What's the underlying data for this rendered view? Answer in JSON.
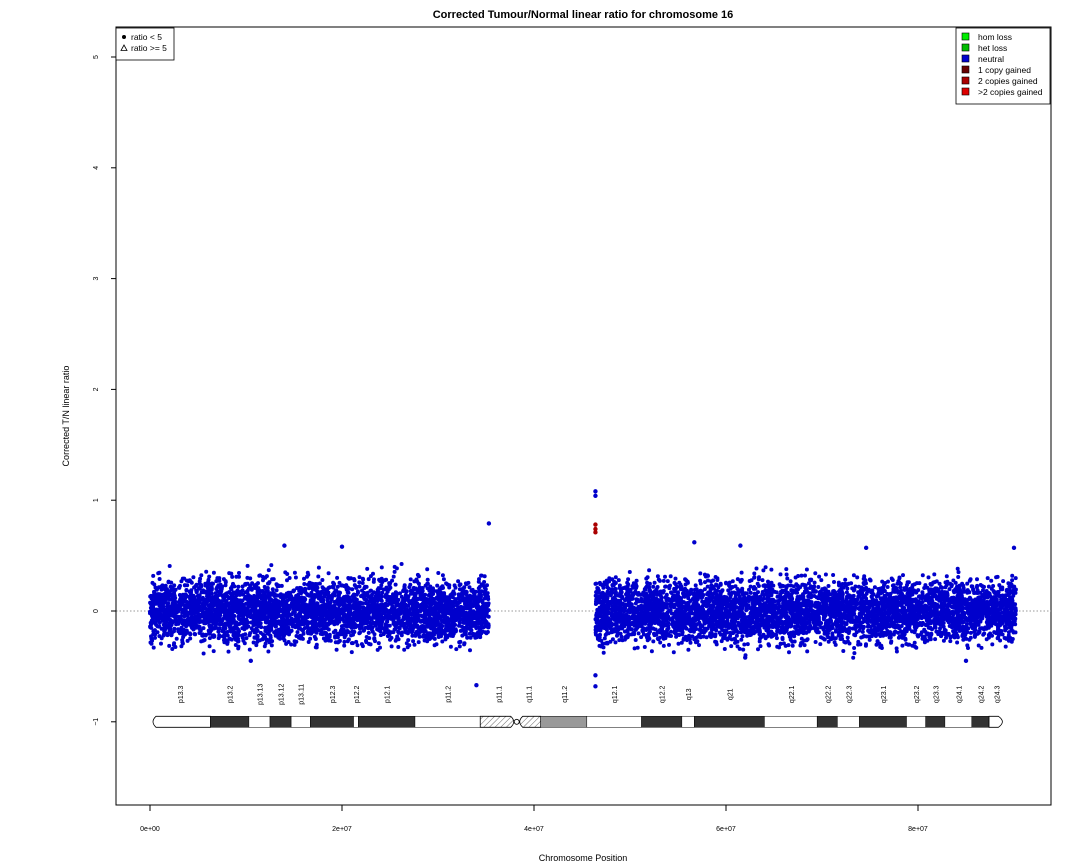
{
  "chart_data": {
    "type": "scatter",
    "title": "Corrected Tumour/Normal linear ratio for chromosome  16",
    "xlabel": "Chromosome Position",
    "ylabel": "Corrected T/N linear ratio",
    "xlim": [
      0,
      97000000
    ],
    "ylim": [
      -1.75,
      5.25
    ],
    "x_ticks": [
      {
        "value": 0,
        "label": "0e+00"
      },
      {
        "value": 20000000,
        "label": "2e+07"
      },
      {
        "value": 40000000,
        "label": "4e+07"
      },
      {
        "value": 60000000,
        "label": "6e+07"
      },
      {
        "value": 80000000,
        "label": "8e+07"
      }
    ],
    "y_ticks": [
      {
        "value": -1,
        "label": "−1"
      },
      {
        "value": 0,
        "label": "0"
      },
      {
        "value": 1,
        "label": "1"
      },
      {
        "value": 2,
        "label": "2"
      },
      {
        "value": 3,
        "label": "3"
      },
      {
        "value": 4,
        "label": "4"
      },
      {
        "value": 5,
        "label": "5"
      }
    ],
    "reference_line": 0,
    "point_clouds": [
      {
        "x_start": 0,
        "x_end": 35300000,
        "center": 0,
        "spread": 0.36,
        "status": "neutral"
      },
      {
        "x_start": 46400000,
        "x_end": 90200000,
        "center": 0,
        "spread": 0.36,
        "status": "neutral"
      }
    ],
    "outliers": [
      {
        "x": 35300000,
        "y": 0.79,
        "status": "neutral"
      },
      {
        "x": 34000000,
        "y": -0.67,
        "status": "neutral"
      },
      {
        "x": 46400000,
        "y": 1.08,
        "status": "neutral"
      },
      {
        "x": 46400000,
        "y": 1.04,
        "status": "neutral"
      },
      {
        "x": 46400000,
        "y": 0.78,
        "status": "2 copies gained"
      },
      {
        "x": 46400000,
        "y": 0.74,
        "status": "2 copies gained"
      },
      {
        "x": 46400000,
        "y": 0.71,
        "status": "2 copies gained"
      },
      {
        "x": 46400000,
        "y": -0.68,
        "status": "neutral"
      },
      {
        "x": 46400000,
        "y": -0.58,
        "status": "neutral"
      },
      {
        "x": 56700000,
        "y": 0.62,
        "status": "neutral"
      },
      {
        "x": 14000000,
        "y": 0.59,
        "status": "neutral"
      },
      {
        "x": 20000000,
        "y": 0.58,
        "status": "neutral"
      },
      {
        "x": 61500000,
        "y": 0.59,
        "status": "neutral"
      },
      {
        "x": 74600000,
        "y": 0.57,
        "status": "neutral"
      },
      {
        "x": 90000000,
        "y": 0.57,
        "status": "neutral"
      },
      {
        "x": 10500000,
        "y": -0.45,
        "status": "neutral"
      },
      {
        "x": 62000000,
        "y": -0.42,
        "status": "neutral"
      },
      {
        "x": 85000000,
        "y": -0.45,
        "status": "neutral"
      }
    ],
    "ideogram": {
      "y": -1,
      "bands": [
        {
          "name": "p13.3",
          "start": 0,
          "end": 6300000,
          "stain": "gneg"
        },
        {
          "name": "p13.2",
          "start": 6300000,
          "end": 10300000,
          "stain": "gpos"
        },
        {
          "name": "p13.13",
          "start": 10300000,
          "end": 12500000,
          "stain": "gneg"
        },
        {
          "name": "p13.12",
          "start": 12500000,
          "end": 14700000,
          "stain": "gpos"
        },
        {
          "name": "p13.11",
          "start": 14700000,
          "end": 16700000,
          "stain": "gneg"
        },
        {
          "name": "p12.3",
          "start": 16700000,
          "end": 21200000,
          "stain": "gpos"
        },
        {
          "name": "p12.2",
          "start": 21200000,
          "end": 21700000,
          "stain": "gneg"
        },
        {
          "name": "p12.1",
          "start": 21700000,
          "end": 27600000,
          "stain": "gpos"
        },
        {
          "name": "p11.2",
          "start": 27600000,
          "end": 34400000,
          "stain": "gneg"
        },
        {
          "name": "p11.1",
          "start": 34400000,
          "end": 38200000,
          "stain": "acen"
        },
        {
          "name": "q11.1",
          "start": 38200000,
          "end": 40700000,
          "stain": "acen"
        },
        {
          "name": "q11.2",
          "start": 40700000,
          "end": 45500000,
          "stain": "gvar"
        },
        {
          "name": "q12.1",
          "start": 45500000,
          "end": 51200000,
          "stain": "gneg"
        },
        {
          "name": "q12.2",
          "start": 51200000,
          "end": 55400000,
          "stain": "gpos"
        },
        {
          "name": "q13",
          "start": 55400000,
          "end": 56700000,
          "stain": "gneg"
        },
        {
          "name": "q21",
          "start": 56700000,
          "end": 64000000,
          "stain": "gpos"
        },
        {
          "name": "q22.1",
          "start": 64000000,
          "end": 69500000,
          "stain": "gneg"
        },
        {
          "name": "q22.2",
          "start": 69500000,
          "end": 71600000,
          "stain": "gpos"
        },
        {
          "name": "q22.3",
          "start": 71600000,
          "end": 73900000,
          "stain": "gneg"
        },
        {
          "name": "q23.1",
          "start": 73900000,
          "end": 78800000,
          "stain": "gpos"
        },
        {
          "name": "q23.2",
          "start": 78800000,
          "end": 80800000,
          "stain": "gneg"
        },
        {
          "name": "q23.3",
          "start": 80800000,
          "end": 82800000,
          "stain": "gpos"
        },
        {
          "name": "q24.1",
          "start": 82800000,
          "end": 85600000,
          "stain": "gneg"
        },
        {
          "name": "q24.2",
          "start": 85600000,
          "end": 87400000,
          "stain": "gpos"
        },
        {
          "name": "q24.3",
          "start": 87400000,
          "end": 89000000,
          "stain": "gneg"
        }
      ]
    },
    "legend_shape": {
      "placement": "top-left",
      "items": [
        {
          "label": "ratio < 5",
          "symbol": "filled-circle-icon"
        },
        {
          "label": "ratio >= 5",
          "symbol": "open-triangle-icon"
        }
      ]
    },
    "legend_status": {
      "placement": "top-right",
      "items": [
        {
          "label": "hom loss",
          "color": "#00EE00"
        },
        {
          "label": "het loss",
          "color": "#00BB00"
        },
        {
          "label": "neutral",
          "color": "#0000CC"
        },
        {
          "label": "1 copy gained",
          "color": "#660000"
        },
        {
          "label": "2 copies gained",
          "color": "#AA0000"
        },
        {
          "label": ">2 copies gained",
          "color": "#DD0000"
        }
      ]
    },
    "colors": {
      "neutral": "#0000CC",
      "2 copies gained": "#AA0000",
      "gneg": "#FFFFFF",
      "gpos": "#333333",
      "gvar": "#999999",
      "acen": "#FFFFFF"
    }
  }
}
